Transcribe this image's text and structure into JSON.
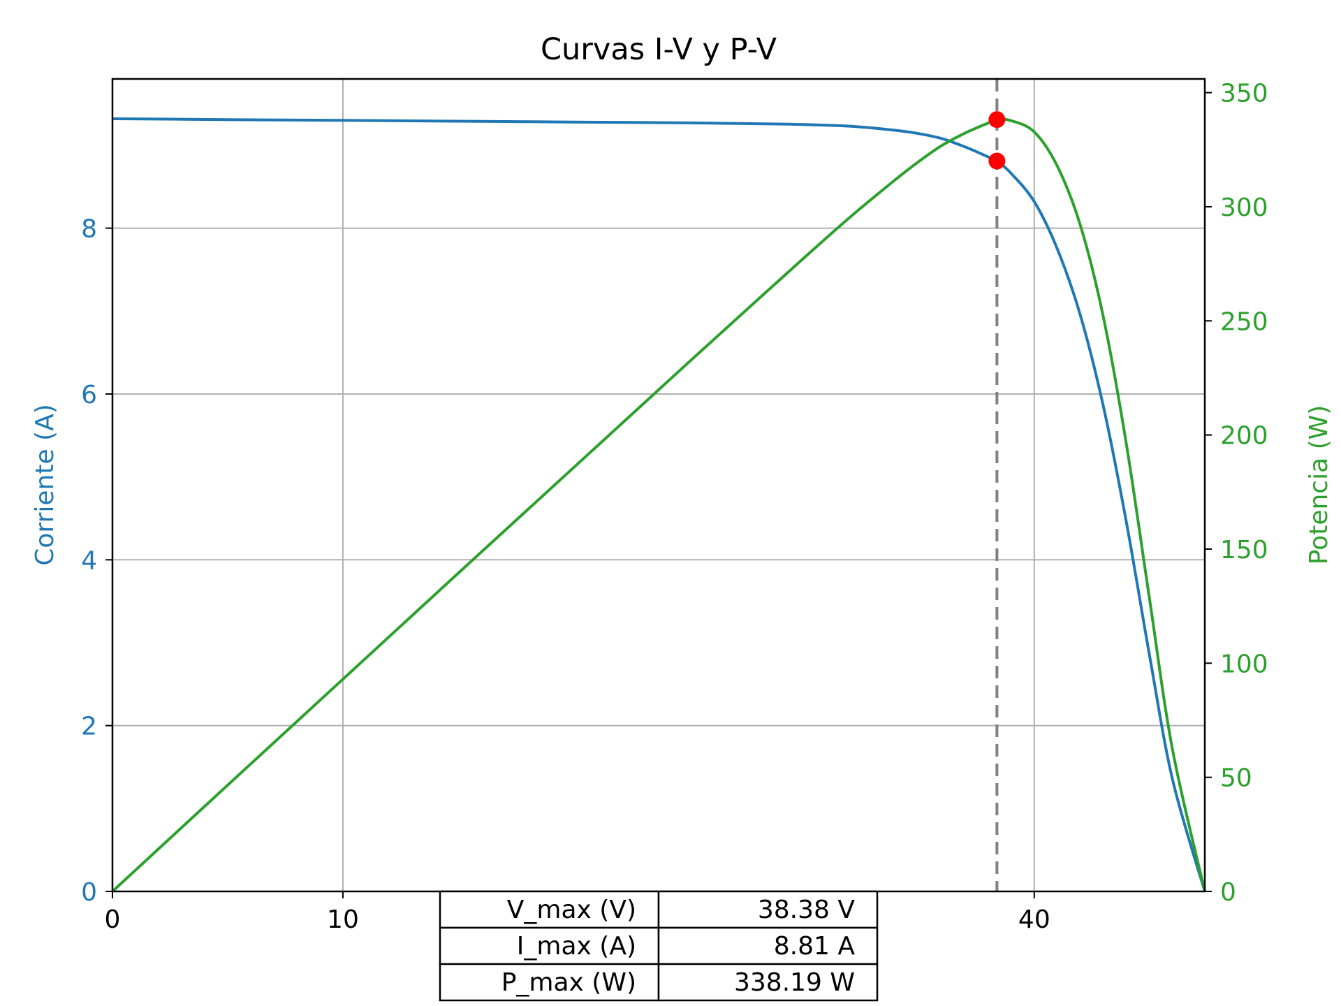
{
  "chart_data": {
    "type": "line",
    "title": "Curvas I-V y P-V",
    "xlabel": "",
    "ylabel": "Corriente (A)",
    "y2label": "Potencia (W)",
    "xlim": [
      0,
      47.4
    ],
    "ylim": [
      0,
      9.8
    ],
    "y2lim": [
      0,
      356
    ],
    "xticks": [
      0,
      10,
      40
    ],
    "yticks": [
      0,
      2,
      4,
      6,
      8
    ],
    "y2ticks": [
      0,
      50,
      100,
      150,
      200,
      250,
      300,
      350
    ],
    "grid": true,
    "series": [
      {
        "axis": "left",
        "color": "#1f77b4",
        "x": [
          0,
          5,
          10,
          15,
          20,
          25,
          28,
          30,
          32,
          34,
          35,
          36,
          37,
          38,
          38.38,
          39,
          40,
          41,
          42,
          43,
          44,
          45,
          46,
          47.4
        ],
        "y": [
          9.32,
          9.31,
          9.3,
          9.29,
          9.28,
          9.27,
          9.26,
          9.25,
          9.23,
          9.18,
          9.14,
          9.08,
          8.98,
          8.86,
          8.81,
          8.66,
          8.32,
          7.75,
          6.95,
          5.85,
          4.45,
          2.85,
          1.35,
          0
        ]
      },
      {
        "axis": "right",
        "color": "#2ca02c",
        "x": [
          0,
          5,
          10,
          15,
          20,
          25,
          28,
          30,
          32,
          34,
          35,
          36,
          37,
          38,
          38.38,
          39,
          40,
          41,
          42,
          43,
          44,
          45,
          46,
          47.4
        ],
        "y": [
          0,
          46.6,
          93.0,
          139.4,
          185.6,
          231.8,
          259.3,
          277.5,
          295.4,
          312.1,
          319.9,
          326.9,
          332.3,
          336.7,
          338.19,
          337.7,
          332.8,
          317.8,
          291.9,
          251.6,
          195.8,
          128.3,
          62.1,
          0
        ]
      }
    ],
    "vline": {
      "x": 38.38,
      "color": "#808080",
      "style": "dashed"
    },
    "markers": [
      {
        "axis": "left",
        "x": 38.38,
        "y": 8.81,
        "color": "#ff0000"
      },
      {
        "axis": "right",
        "x": 38.38,
        "y": 338.19,
        "color": "#ff0000"
      }
    ],
    "table": [
      {
        "label": "V_max (V)",
        "value": "38.38 V"
      },
      {
        "label": "I_max (A)",
        "value": "8.81 A"
      },
      {
        "label": "P_max (W)",
        "value": "338.19 W"
      }
    ],
    "colors": {
      "current_axis": "#1f77b4",
      "power_axis": "#2ca02c",
      "grid": "#b0b0b0"
    }
  }
}
